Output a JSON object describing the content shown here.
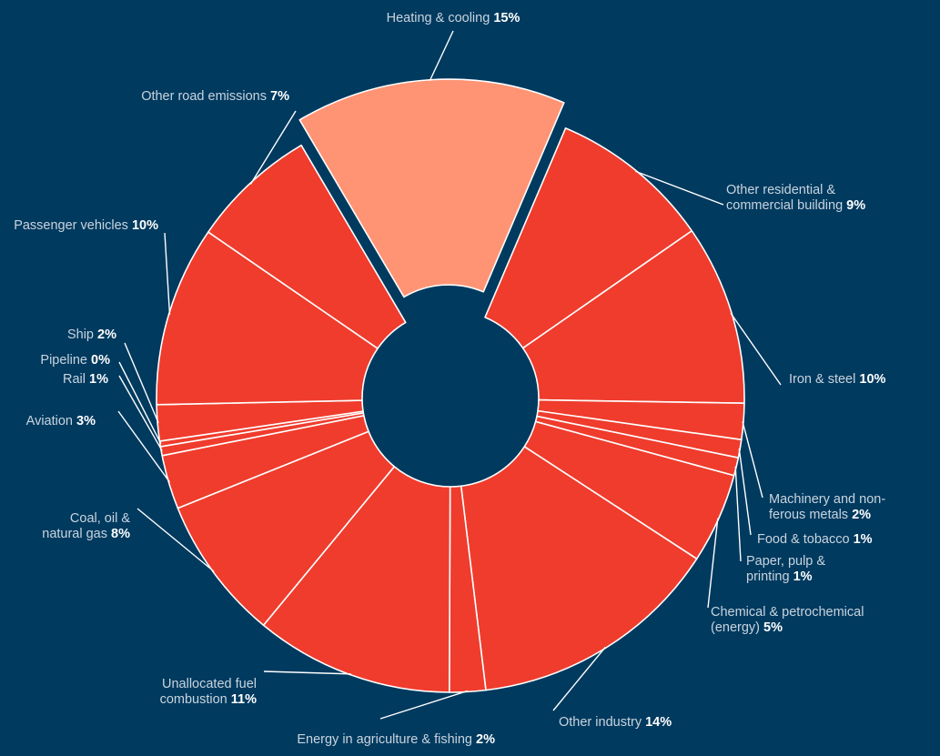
{
  "chart_data": {
    "type": "pie",
    "title": "",
    "colors": {
      "background": "#003a5f",
      "slice": "#ef3c2d",
      "highlight": "#ff9475",
      "separator": "#ffffff",
      "leader": "#ffffff"
    },
    "slices": [
      {
        "name": "Heating & cooling",
        "value": 15,
        "pct_label": "15%",
        "exploded": true,
        "label_lines": [
          "Heating & cooling"
        ]
      },
      {
        "name": "Other residential & commercial building",
        "value": 9,
        "pct_label": "9%",
        "label_lines": [
          "Other residential &",
          "commercial building"
        ]
      },
      {
        "name": "Iron & steel",
        "value": 10,
        "pct_label": "10%",
        "label_lines": [
          "Iron & steel"
        ]
      },
      {
        "name": "Machinery and non-ferous metals",
        "value": 2,
        "pct_label": "2%",
        "label_lines": [
          "Machinery and non-",
          "ferous metals"
        ]
      },
      {
        "name": "Food & tobacco",
        "value": 1,
        "pct_label": "1%",
        "label_lines": [
          "Food & tobacco"
        ]
      },
      {
        "name": "Paper, pulp & printing",
        "value": 1,
        "pct_label": "1%",
        "label_lines": [
          "Paper, pulp &",
          "printing"
        ]
      },
      {
        "name": "Chemical & petrochemical (energy)",
        "value": 5,
        "pct_label": "5%",
        "label_lines": [
          "Chemical & petrochemical",
          "(energy)"
        ]
      },
      {
        "name": "Other industry",
        "value": 14,
        "pct_label": "14%",
        "label_lines": [
          "Other industry"
        ]
      },
      {
        "name": "Energy in agriculture & fishing",
        "value": 2,
        "pct_label": "2%",
        "label_lines": [
          "Energy in agriculture & fishing"
        ]
      },
      {
        "name": "Unallocated fuel combustion",
        "value": 11,
        "pct_label": "11%",
        "label_lines": [
          "Unallocated fuel",
          "combustion"
        ]
      },
      {
        "name": "Coal, oil & natural gas",
        "value": 8,
        "pct_label": "8%",
        "label_lines": [
          "Coal, oil &",
          "natural gas"
        ]
      },
      {
        "name": "Aviation",
        "value": 3,
        "pct_label": "3%",
        "label_lines": [
          "Aviation"
        ]
      },
      {
        "name": "Rail",
        "value": 0.5,
        "pct_label": "1%",
        "label_lines": [
          "Rail"
        ]
      },
      {
        "name": "Pipeline",
        "value": 0.3,
        "pct_label": "0%",
        "label_lines": [
          "Pipeline"
        ]
      },
      {
        "name": "Ship",
        "value": 2,
        "pct_label": "2%",
        "label_lines": [
          "Ship"
        ]
      },
      {
        "name": "Passenger vehicles",
        "value": 10,
        "pct_label": "10%",
        "label_lines": [
          "Passenger vehicles"
        ]
      },
      {
        "name": "Other road emissions",
        "value": 7,
        "pct_label": "7%",
        "label_lines": [
          "Other road emissions"
        ]
      }
    ]
  }
}
